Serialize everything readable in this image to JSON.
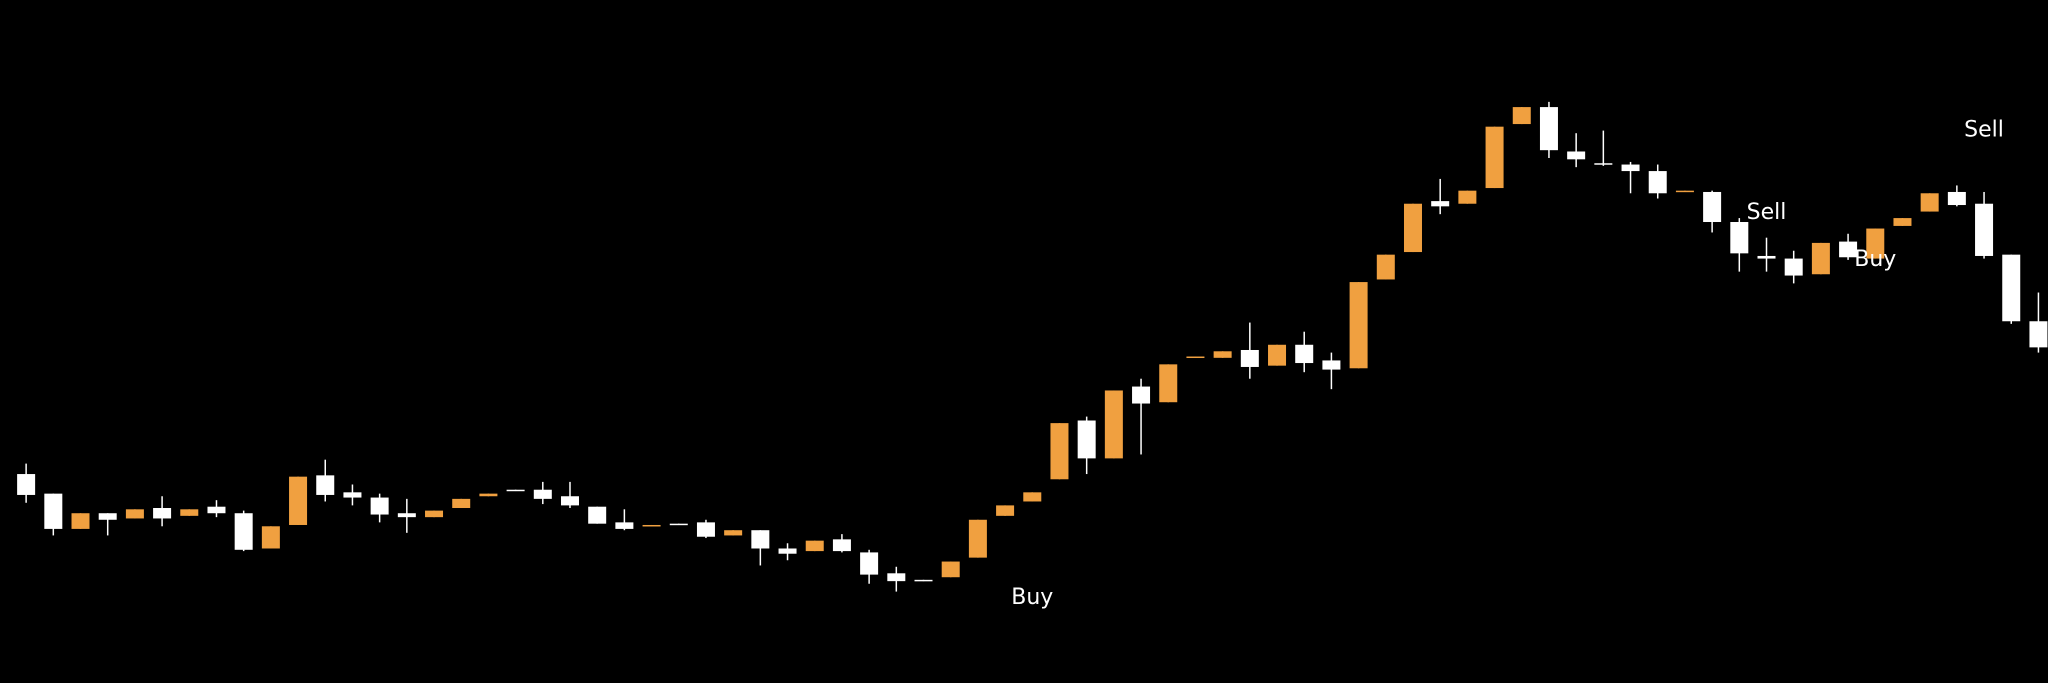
{
  "chart_data": {
    "type": "candlestick",
    "up_color": "#f0a040",
    "down_color": "#ffffff",
    "ylim": [
      0,
      523
    ],
    "open": [
      160,
      145,
      118,
      130,
      126,
      134,
      128,
      135,
      130,
      103,
      121,
      159,
      146,
      142,
      130,
      127,
      134,
      143,
      148,
      148,
      143,
      135,
      123,
      120,
      122,
      123,
      113,
      117,
      103,
      101,
      110,
      100,
      84,
      79,
      81,
      96,
      128,
      139,
      156,
      201,
      172,
      227,
      215,
      249,
      249,
      255,
      243,
      259,
      247,
      241,
      309,
      330,
      369,
      367,
      379,
      428,
      441,
      407,
      398,
      397,
      392,
      376,
      376,
      353,
      327,
      325,
      313,
      338,
      325,
      350,
      361,
      376,
      367,
      328,
      277
    ],
    "high": [
      168,
      145,
      130,
      130,
      133,
      143,
      133,
      140,
      132,
      120,
      158,
      171,
      152,
      145,
      141,
      132,
      141,
      145,
      148,
      154,
      154,
      135,
      133,
      121,
      122,
      125,
      117,
      117,
      107,
      109,
      114,
      102,
      89,
      79,
      93,
      125,
      136,
      146,
      199,
      204,
      224,
      233,
      244,
      250,
      254,
      276,
      259,
      269,
      253,
      307,
      328,
      367,
      386,
      377,
      426,
      441,
      445,
      421,
      423,
      399,
      397,
      377,
      377,
      356,
      341,
      331,
      337,
      344,
      348,
      356,
      375,
      381,
      376,
      328,
      299
    ],
    "low": [
      138,
      113,
      118,
      113,
      126,
      120,
      128,
      127,
      101,
      103,
      121,
      139,
      136,
      123,
      115,
      127,
      134,
      143,
      147,
      137,
      134,
      122,
      117,
      120,
      121,
      111,
      113,
      90,
      94,
      101,
      100,
      76,
      70,
      78,
      81,
      96,
      128,
      139,
      156,
      160,
      172,
      175,
      215,
      249,
      249,
      233,
      243,
      238,
      225,
      241,
      309,
      330,
      359,
      367,
      379,
      428,
      402,
      395,
      396,
      375,
      371,
      376,
      345,
      315,
      315,
      306,
      313,
      324,
      325,
      350,
      361,
      365,
      325,
      275,
      253
    ],
    "close": [
      144,
      118,
      130,
      125,
      133,
      126,
      133,
      130,
      102,
      120,
      158,
      144,
      142,
      129,
      127,
      132,
      141,
      145,
      147,
      141,
      136,
      122,
      118,
      121,
      121,
      112,
      117,
      103,
      99,
      109,
      101,
      83,
      78,
      78,
      93,
      125,
      136,
      146,
      199,
      172,
      224,
      214,
      244,
      250,
      254,
      242,
      259,
      245,
      240,
      307,
      328,
      367,
      365,
      377,
      426,
      441,
      408,
      401,
      397,
      392,
      375,
      377,
      353,
      329,
      325,
      312,
      337,
      326,
      348,
      356,
      375,
      366,
      327,
      277,
      257
    ],
    "annotations": [
      {
        "text": "Buy",
        "x": 37,
        "y": 65
      },
      {
        "text": "Sell",
        "x": 64,
        "y": 360
      },
      {
        "text": "Buy",
        "x": 68,
        "y": 324
      },
      {
        "text": "Sell",
        "x": 72,
        "y": 423
      }
    ]
  }
}
